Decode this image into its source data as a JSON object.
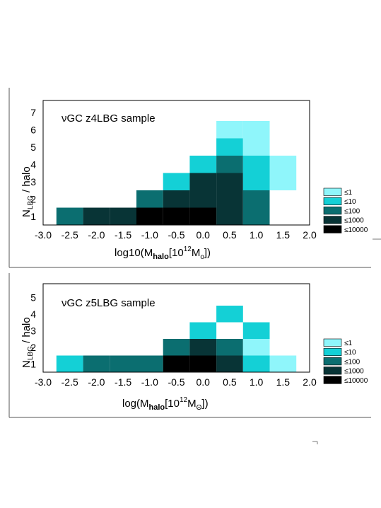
{
  "chart_data": [
    {
      "type": "heatmap",
      "title": "νGC z4LBG sample",
      "xlabel": {
        "prefix": "log10(M",
        "sub": "halo",
        "mid": "[10",
        "sup": "12",
        "unit": "M",
        "unit_sub": "o",
        "suffix": "])"
      },
      "ylabel": {
        "main": "N",
        "sub": "LBG",
        "suffix": " / halo"
      },
      "x_ticks": [
        "-3.0",
        "-2.5",
        "-2.0",
        "-1.5",
        "-1.0",
        "-0.5",
        "0.0",
        "0.5",
        "1.0",
        "1.5",
        "2.0"
      ],
      "y_ticks": [
        "1",
        "2",
        "3",
        "4",
        "5",
        "6",
        "7"
      ],
      "xlim": [
        -3.0,
        2.0
      ],
      "bin_width": 0.5,
      "legend": [
        "≤1",
        "≤10",
        "≤100",
        "≤1000",
        "≤10000"
      ],
      "cells": [
        {
          "x": -2.5,
          "y": 1,
          "level": 2
        },
        {
          "x": -2.0,
          "y": 1,
          "level": 3
        },
        {
          "x": -1.5,
          "y": 1,
          "level": 3
        },
        {
          "x": -1.0,
          "y": 1,
          "level": 4
        },
        {
          "x": -0.5,
          "y": 1,
          "level": 4
        },
        {
          "x": 0.0,
          "y": 1,
          "level": 4
        },
        {
          "x": 0.5,
          "y": 1,
          "level": 3
        },
        {
          "x": 1.0,
          "y": 1,
          "level": 2
        },
        {
          "x": -1.0,
          "y": 2,
          "level": 2
        },
        {
          "x": -0.5,
          "y": 2,
          "level": 3
        },
        {
          "x": 0.0,
          "y": 2,
          "level": 3
        },
        {
          "x": 0.5,
          "y": 2,
          "level": 3
        },
        {
          "x": 1.0,
          "y": 2,
          "level": 2
        },
        {
          "x": -0.5,
          "y": 3,
          "level": 1
        },
        {
          "x": 0.0,
          "y": 3,
          "level": 3
        },
        {
          "x": 0.5,
          "y": 3,
          "level": 3
        },
        {
          "x": 1.0,
          "y": 3,
          "level": 1
        },
        {
          "x": 1.5,
          "y": 3,
          "level": 0
        },
        {
          "x": 0.0,
          "y": 4,
          "level": 1
        },
        {
          "x": 0.5,
          "y": 4,
          "level": 2
        },
        {
          "x": 1.0,
          "y": 4,
          "level": 1
        },
        {
          "x": 1.5,
          "y": 4,
          "level": 0
        },
        {
          "x": 0.5,
          "y": 5,
          "level": 1
        },
        {
          "x": 1.0,
          "y": 5,
          "level": 0
        },
        {
          "x": 0.5,
          "y": 6,
          "level": 0
        },
        {
          "x": 1.0,
          "y": 6,
          "level": 0
        }
      ]
    },
    {
      "type": "heatmap",
      "title": "νGC z5LBG sample",
      "xlabel": {
        "prefix": "log(M",
        "sub": "halo",
        "mid": "[10",
        "sup": "12",
        "unit": "M",
        "unit_sub": "Θ",
        "suffix": "])"
      },
      "ylabel": {
        "main": "N",
        "sub": "LBG",
        "suffix": " / halo"
      },
      "x_ticks": [
        "-3.0",
        "-2.5",
        "-2.0",
        "-1.5",
        "-1.0",
        "-0.5",
        "0.0",
        "0.5",
        "1.0",
        "1.5",
        "2.0"
      ],
      "y_ticks": [
        "1",
        "2",
        "3",
        "4",
        "5"
      ],
      "xlim": [
        -3.0,
        2.0
      ],
      "bin_width": 0.5,
      "legend": [
        "≤1",
        "≤10",
        "≤100",
        "≤1000",
        "≤10000"
      ],
      "cells": [
        {
          "x": -2.5,
          "y": 1,
          "level": 1
        },
        {
          "x": -2.0,
          "y": 1,
          "level": 2
        },
        {
          "x": -1.5,
          "y": 1,
          "level": 2
        },
        {
          "x": -1.0,
          "y": 1,
          "level": 2
        },
        {
          "x": -0.5,
          "y": 1,
          "level": 4
        },
        {
          "x": 0.0,
          "y": 1,
          "level": 4
        },
        {
          "x": 0.5,
          "y": 1,
          "level": 3
        },
        {
          "x": 1.0,
          "y": 1,
          "level": 1
        },
        {
          "x": 1.5,
          "y": 1,
          "level": 0
        },
        {
          "x": -0.5,
          "y": 2,
          "level": 2
        },
        {
          "x": 0.0,
          "y": 2,
          "level": 3
        },
        {
          "x": 0.5,
          "y": 2,
          "level": 2
        },
        {
          "x": 1.0,
          "y": 2,
          "level": 0
        },
        {
          "x": 0.0,
          "y": 3,
          "level": 1
        },
        {
          "x": 1.0,
          "y": 3,
          "level": 1
        },
        {
          "x": 0.5,
          "y": 4,
          "level": 1
        }
      ]
    }
  ],
  "colors": {
    "level_fills": [
      "#8ff6fb",
      "#14d0d6",
      "#0b6e70",
      "#083436",
      "#000000"
    ],
    "frame": "#000000"
  }
}
